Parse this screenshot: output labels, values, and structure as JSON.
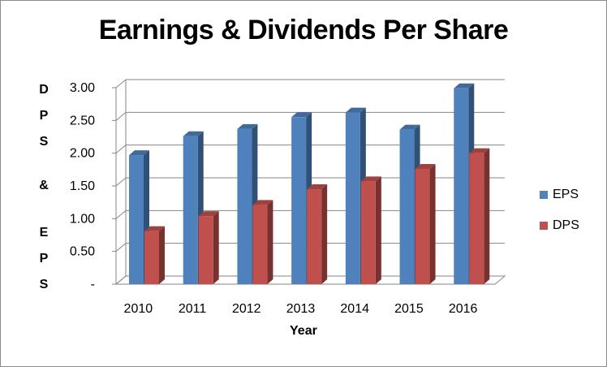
{
  "chart_data": {
    "type": "bar",
    "title": "Earnings & Dividends Per Share",
    "xlabel": "Year",
    "ylabel": "DPS & EPS",
    "categories": [
      "2010",
      "2011",
      "2012",
      "2013",
      "2014",
      "2015",
      "2016"
    ],
    "series": [
      {
        "name": "EPS",
        "color": "#4f81bd",
        "values": [
          1.97,
          2.26,
          2.37,
          2.55,
          2.62,
          2.36,
          2.99
        ]
      },
      {
        "name": "DPS",
        "color": "#c0504d",
        "values": [
          0.81,
          1.04,
          1.21,
          1.45,
          1.57,
          1.76,
          2.0
        ]
      }
    ],
    "ylim": [
      0,
      3.0
    ],
    "yticks": [
      0,
      0.5,
      1.0,
      1.5,
      2.0,
      2.5,
      3.0
    ],
    "ytick_labels": [
      "-",
      "0.50",
      "1.00",
      "1.50",
      "2.00",
      "2.50",
      "3.00"
    ],
    "grid": true,
    "legend_position": "right"
  }
}
